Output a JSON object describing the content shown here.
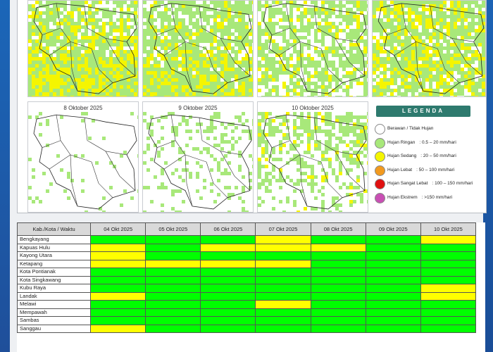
{
  "colors": {
    "green_cell": "#00ff00",
    "yellow_cell": "#ffff00",
    "legend_header": "#2e7a6e",
    "light_rain": "#a8e87a",
    "moderate_rain": "#f5f500",
    "heavy_rain": "#f29a1f",
    "very_heavy_rain": "#e01010",
    "extreme_rain": "#c94fb4",
    "cloudy": "#ffffff"
  },
  "maps": [
    {
      "title": "",
      "pattern": "mixed-heavy-south"
    },
    {
      "title": "",
      "pattern": "mixed-south"
    },
    {
      "title": "",
      "pattern": "mixed-light"
    },
    {
      "title": "",
      "pattern": "mixed-heavy"
    },
    {
      "title": "8 Oktober 2025",
      "pattern": "sparse"
    },
    {
      "title": "9 Oktober 2025",
      "pattern": "sparse-northwest"
    },
    {
      "title": "10 Oktober 2025",
      "pattern": "mixed-north"
    }
  ],
  "legend": {
    "title": "LEGENDA",
    "items": [
      {
        "label": "Berawan / Tidak Hujan",
        "range": "",
        "color": "#ffffff"
      },
      {
        "label": "Hujan Ringan",
        "range": ": 0.5 – 20 mm/hari",
        "color": "#a8e87a"
      },
      {
        "label": "Hujan Sedang",
        "range": ": 20 – 50 mm/hari",
        "color": "#f5f500"
      },
      {
        "label": "Hujan Lebat",
        "range": ": 50 – 100 mm/hari",
        "color": "#f29a1f"
      },
      {
        "label": "Hujan Sangat Lebat",
        "range": ": 100 – 150 mm/hari",
        "color": "#e01010"
      },
      {
        "label": "Hujan Ekstrem",
        "range": ": >150 mm/hari",
        "color": "#c94fb4"
      }
    ]
  },
  "table": {
    "header_first": "Kab./Kota / Waktu",
    "dates": [
      "04 Okt 2025",
      "05 Okt 2025",
      "06 Okt 2025",
      "07 Okt 2025",
      "08 Okt 2025",
      "09 Okt 2025",
      "10 Okt 2025"
    ],
    "rows": [
      {
        "name": "Bengkayang",
        "cells": [
          "g",
          "g",
          "g",
          "y",
          "g",
          "g",
          "y"
        ]
      },
      {
        "name": "Kapuas Hulu",
        "cells": [
          "y",
          "g",
          "y",
          "y",
          "y",
          "g",
          "g"
        ]
      },
      {
        "name": "Kayong Utara",
        "cells": [
          "y",
          "g",
          "g",
          "g",
          "g",
          "g",
          "g"
        ]
      },
      {
        "name": "Ketapang",
        "cells": [
          "y",
          "y",
          "y",
          "y",
          "g",
          "g",
          "g"
        ]
      },
      {
        "name": "Kota Pontianak",
        "cells": [
          "g",
          "g",
          "g",
          "g",
          "g",
          "g",
          "g"
        ]
      },
      {
        "name": "Kota Singkawang",
        "cells": [
          "g",
          "g",
          "g",
          "g",
          "g",
          "g",
          "g"
        ]
      },
      {
        "name": "Kubu Raya",
        "cells": [
          "g",
          "g",
          "g",
          "g",
          "g",
          "g",
          "y"
        ]
      },
      {
        "name": "Landak",
        "cells": [
          "y",
          "g",
          "g",
          "g",
          "g",
          "g",
          "y"
        ]
      },
      {
        "name": "Melawi",
        "cells": [
          "g",
          "g",
          "g",
          "y",
          "g",
          "g",
          "g"
        ]
      },
      {
        "name": "Mempawah",
        "cells": [
          "g",
          "g",
          "g",
          "g",
          "g",
          "g",
          "g"
        ]
      },
      {
        "name": "Sambas",
        "cells": [
          "g",
          "g",
          "g",
          "g",
          "g",
          "g",
          "g"
        ]
      },
      {
        "name": "Sanggau",
        "cells": [
          "y",
          "g",
          "g",
          "g",
          "g",
          "g",
          "g"
        ]
      }
    ]
  }
}
